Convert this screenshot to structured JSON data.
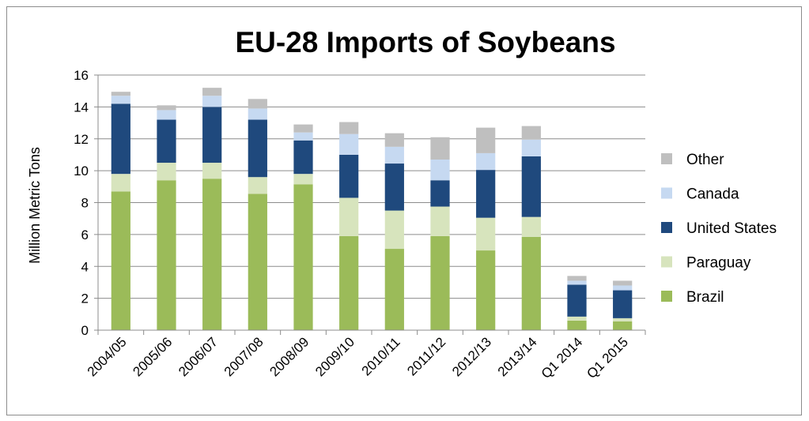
{
  "chart_data": {
    "type": "bar",
    "stacked": true,
    "title": "EU-28 Imports of Soybeans",
    "xlabel": "",
    "ylabel": "Million Metric Tons",
    "ylim": [
      0,
      16
    ],
    "yticks": [
      0,
      2,
      4,
      6,
      8,
      10,
      12,
      14,
      16
    ],
    "grid": true,
    "legend_position": "right",
    "categories": [
      "2004/05",
      "2005/06",
      "2006/07",
      "2007/08",
      "2008/09",
      "2009/10",
      "2010/11",
      "2011/12",
      "2012/13",
      "2013/14",
      "Q1 2014",
      "Q1 2015"
    ],
    "series": [
      {
        "name": "Brazil",
        "color": "#9bbb59",
        "values": [
          8.7,
          9.4,
          9.5,
          8.55,
          9.15,
          5.9,
          5.1,
          5.9,
          5.0,
          5.85,
          0.6,
          0.55
        ]
      },
      {
        "name": "Paraguay",
        "color": "#d7e4bd",
        "values": [
          1.1,
          1.1,
          1.0,
          1.05,
          0.65,
          2.4,
          2.4,
          1.85,
          2.05,
          1.25,
          0.25,
          0.2
        ]
      },
      {
        "name": "United States",
        "color": "#1f497d",
        "values": [
          4.4,
          2.7,
          3.5,
          3.6,
          2.1,
          2.7,
          2.95,
          1.65,
          3.0,
          3.8,
          2.0,
          1.75
        ]
      },
      {
        "name": "Canada",
        "color": "#c6d9f1",
        "values": [
          0.5,
          0.6,
          0.7,
          0.7,
          0.5,
          1.3,
          1.05,
          1.3,
          1.05,
          1.05,
          0.25,
          0.3
        ]
      },
      {
        "name": "Other",
        "color": "#bfbfbf",
        "values": [
          0.25,
          0.3,
          0.5,
          0.6,
          0.5,
          0.75,
          0.85,
          1.4,
          1.6,
          0.85,
          0.3,
          0.3
        ]
      }
    ]
  }
}
